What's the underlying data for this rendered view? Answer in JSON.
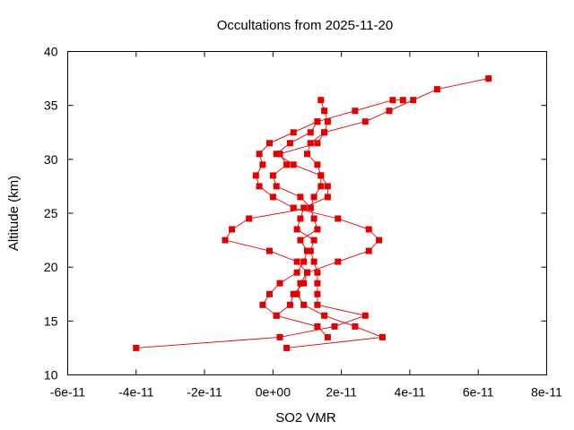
{
  "chart_data": {
    "type": "line",
    "title": "Occultations from 2025-11-20",
    "xlabel": "SO2 VMR",
    "ylabel": "Altitude (km)",
    "xlim": [
      -6e-11,
      8e-11
    ],
    "ylim": [
      10,
      40
    ],
    "x_ticks": [
      -6e-11,
      -4e-11,
      -2e-11,
      0,
      2e-11,
      4e-11,
      6e-11,
      8e-11
    ],
    "x_tick_labels": [
      "-6e-11",
      "-4e-11",
      "-2e-11",
      "0e+00",
      "2e-11",
      "4e-11",
      "6e-11",
      "8e-11"
    ],
    "y_ticks": [
      10,
      15,
      20,
      25,
      30,
      35,
      40
    ],
    "y_tick_labels": [
      "10",
      "15",
      "20",
      "25",
      "30",
      "35",
      "40"
    ],
    "grid": false,
    "legend": "none",
    "color": "#e00000",
    "series": [
      {
        "points": [
          [
            6.3e-11,
            37.5
          ],
          [
            4.8e-11,
            36.5
          ],
          [
            4.1e-11,
            35.5
          ],
          [
            3.4e-11,
            34.5
          ],
          [
            2.7e-11,
            33.5
          ],
          [
            1.5e-11,
            32.5
          ],
          [
            1.1e-11,
            31.5
          ],
          [
            1e-11,
            30.5
          ],
          [
            1.3e-11,
            29.5
          ],
          [
            1.4e-11,
            28.5
          ],
          [
            1.6e-11,
            27.5
          ],
          [
            1.6e-11,
            26.5
          ],
          [
            9e-12,
            25.5
          ],
          [
            8e-12,
            24.5
          ],
          [
            7e-12,
            23.5
          ],
          [
            1.2e-11,
            22.5
          ],
          [
            1.1e-11,
            21.5
          ],
          [
            1.2e-11,
            20.5
          ],
          [
            1.3e-11,
            19.5
          ],
          [
            1.3e-11,
            18.5
          ],
          [
            1.3e-11,
            17.5
          ],
          [
            1.3e-11,
            16.5
          ],
          [
            2.7e-11,
            15.5
          ],
          [
            1.8e-11,
            14.5
          ],
          [
            2e-12,
            13.5
          ],
          [
            -4e-11,
            12.5
          ]
        ]
      },
      {
        "points": [
          [
            3.8e-11,
            35.5
          ],
          [
            3.5e-11,
            35.5
          ],
          [
            2.4e-11,
            34.5
          ],
          [
            1.3e-11,
            33.5
          ],
          [
            6e-12,
            32.5
          ],
          [
            -1e-12,
            31.5
          ],
          [
            -4e-12,
            30.5
          ],
          [
            -3e-12,
            29.5
          ],
          [
            -5e-12,
            28.5
          ],
          [
            -4e-12,
            27.5
          ],
          [
            0.0,
            26.5
          ],
          [
            6e-12,
            25.5
          ],
          [
            1.9e-11,
            24.5
          ],
          [
            2.8e-11,
            23.5
          ],
          [
            3.1e-11,
            22.5
          ],
          [
            2.8e-11,
            21.5
          ],
          [
            1.9e-11,
            20.5
          ],
          [
            1e-11,
            19.5
          ],
          [
            8e-12,
            18.5
          ],
          [
            7e-12,
            17.5
          ],
          [
            9e-12,
            16.5
          ],
          [
            1.5e-11,
            15.5
          ],
          [
            2.4e-11,
            14.5
          ],
          [
            3.2e-11,
            13.5
          ],
          [
            4e-12,
            12.5
          ]
        ]
      },
      {
        "points": [
          [
            1.4e-11,
            35.5
          ],
          [
            1.5e-11,
            34.5
          ],
          [
            1.6e-11,
            33.5
          ],
          [
            1.5e-11,
            32.5
          ],
          [
            1.3e-11,
            31.5
          ],
          [
            2e-12,
            30.5
          ],
          [
            4e-12,
            29.5
          ],
          [
            0.0,
            28.5
          ],
          [
            1e-12,
            27.5
          ],
          [
            8e-12,
            26.5
          ],
          [
            1.1e-11,
            25.5
          ],
          [
            -7e-12,
            24.5
          ],
          [
            -1.2e-11,
            23.5
          ],
          [
            -1.4e-11,
            22.5
          ],
          [
            -1e-12,
            21.5
          ],
          [
            7e-12,
            20.5
          ],
          [
            1e-11,
            19.5
          ],
          [
            9e-12,
            18.5
          ],
          [
            6e-12,
            17.5
          ],
          [
            5e-12,
            16.5
          ],
          [
            1e-12,
            15.5
          ],
          [
            1.3e-11,
            14.5
          ],
          [
            1.6e-11,
            13.5
          ]
        ]
      },
      {
        "points": [
          [
            1.3e-11,
            33.5
          ],
          [
            1.1e-11,
            32.5
          ],
          [
            5e-12,
            31.5
          ],
          [
            1e-12,
            30.5
          ],
          [
            6e-12,
            29.5
          ],
          [
            1.4e-11,
            28.5
          ],
          [
            1.4e-11,
            27.5
          ],
          [
            1.2e-11,
            26.5
          ],
          [
            1.1e-11,
            25.5
          ],
          [
            1.2e-11,
            24.5
          ],
          [
            1.3e-11,
            23.5
          ],
          [
            8e-12,
            22.5
          ],
          [
            1e-11,
            21.5
          ],
          [
            9e-12,
            20.5
          ],
          [
            7e-12,
            19.5
          ],
          [
            2e-12,
            18.5
          ],
          [
            -1e-12,
            17.5
          ],
          [
            -3e-12,
            16.5
          ],
          [
            1e-12,
            15.5
          ]
        ]
      }
    ]
  }
}
